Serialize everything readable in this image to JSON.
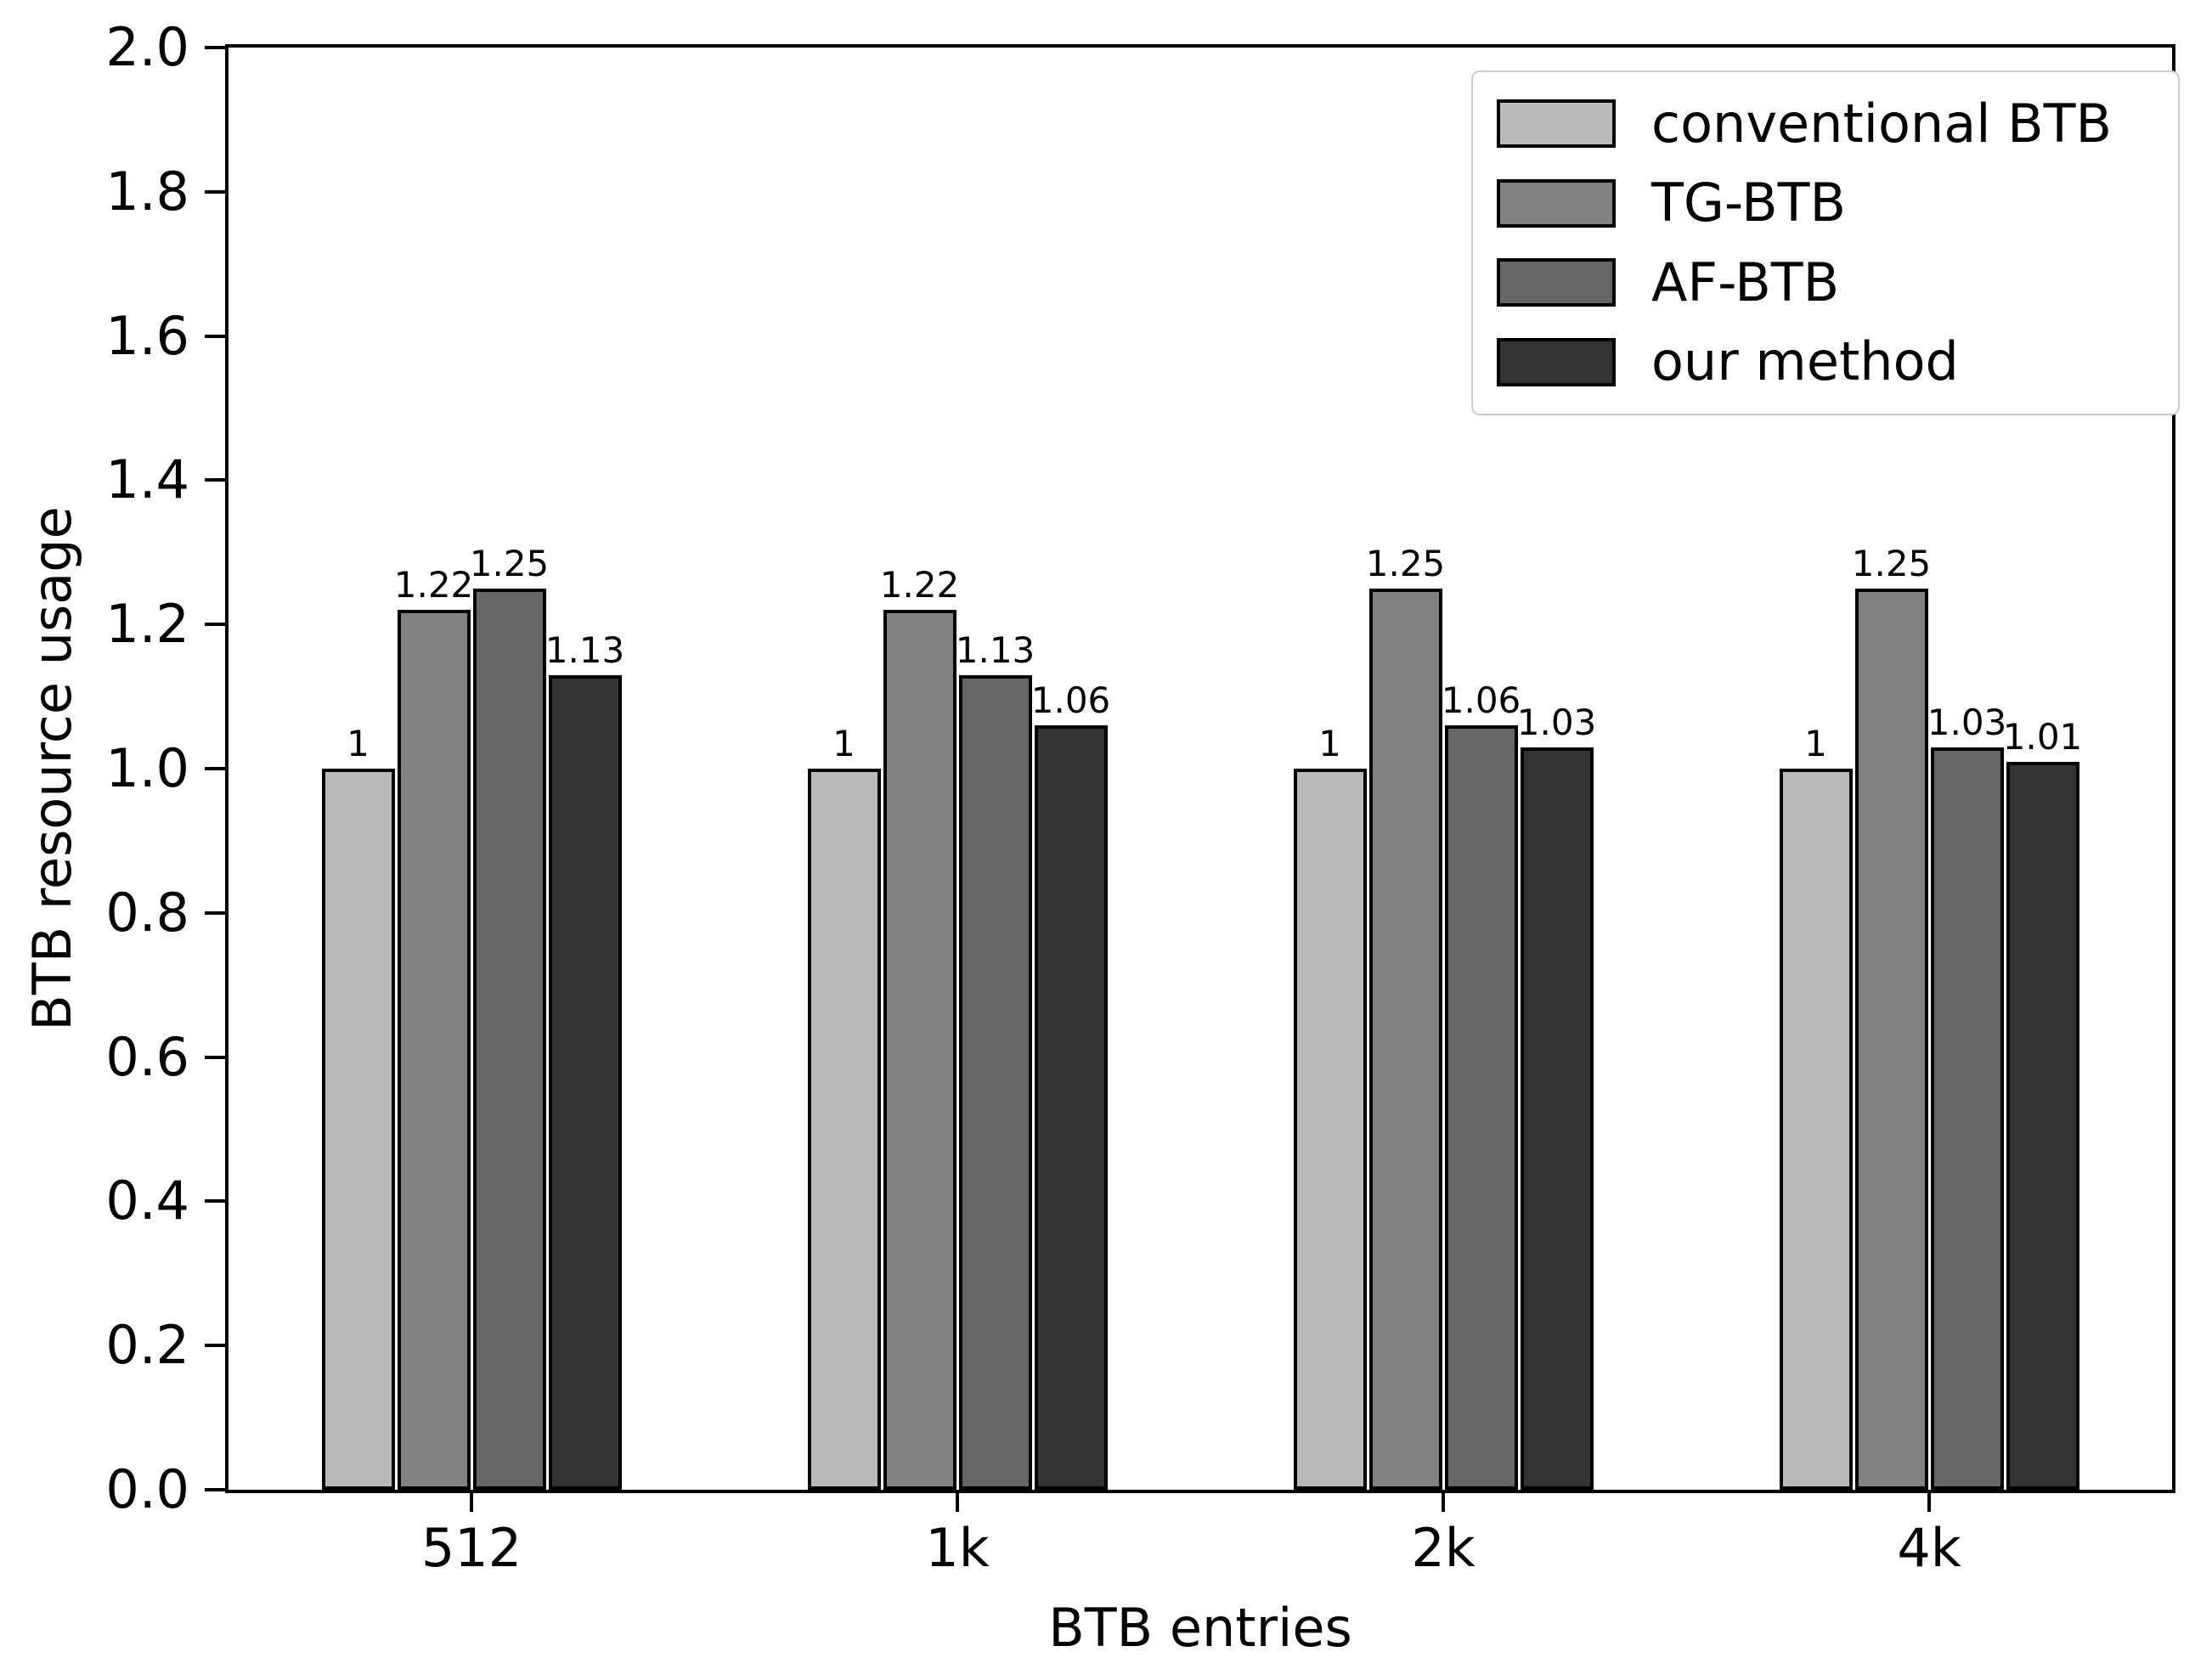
{
  "figure": {
    "background": "#ffffff",
    "text_color": "#000000",
    "spine_color": "#000000"
  },
  "chart_data": {
    "type": "bar",
    "title": "",
    "xlabel": "BTB entries",
    "ylabel": "BTB resource usage",
    "categories": [
      "512",
      "1k",
      "2k",
      "4k"
    ],
    "series": [
      {
        "name": "conventional BTB",
        "color": "#bababa",
        "values": [
          1,
          1,
          1,
          1
        ],
        "labels": [
          "1",
          "1",
          "1",
          "1"
        ]
      },
      {
        "name": "TG-BTB",
        "color": "#828282",
        "values": [
          1.22,
          1.22,
          1.25,
          1.25
        ],
        "labels": [
          "1.22",
          "1.22",
          "1.25",
          "1.25"
        ]
      },
      {
        "name": "AF-BTB",
        "color": "#666666",
        "values": [
          1.25,
          1.13,
          1.06,
          1.03
        ],
        "labels": [
          "1.25",
          "1.13",
          "1.06",
          "1.03"
        ]
      },
      {
        "name": "our method",
        "color": "#333333",
        "values": [
          1.13,
          1.06,
          1.03,
          1.01
        ],
        "labels": [
          "1.13",
          "1.06",
          "1.03",
          "1.01"
        ]
      }
    ],
    "ylim": [
      0.0,
      2.0
    ],
    "ytick_step": 0.2,
    "ytick_labels": [
      "0.0",
      "0.2",
      "0.4",
      "0.6",
      "0.8",
      "1.0",
      "1.2",
      "1.4",
      "1.6",
      "1.8",
      "2.0"
    ],
    "bar_edge_color": "#000000",
    "grid": false,
    "legend_position": "upper right"
  }
}
